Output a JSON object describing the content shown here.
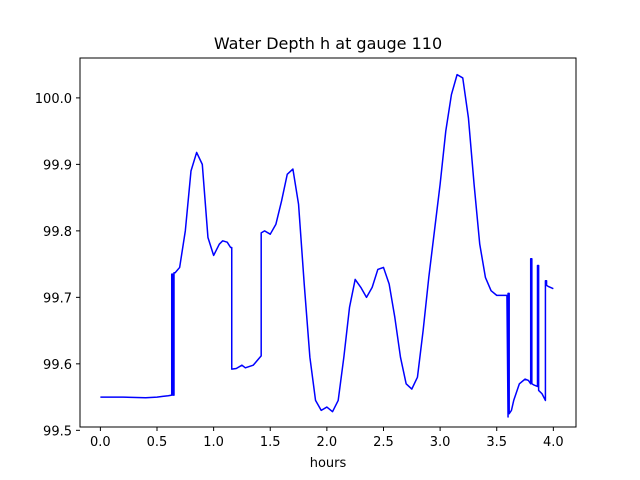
{
  "chart_data": {
    "type": "line",
    "title": "Water Depth h at gauge 110",
    "xlabel": "hours",
    "ylabel": "",
    "xlim": [
      -0.18,
      4.2
    ],
    "ylim": [
      99.505,
      100.06
    ],
    "xticks": [
      "0.0",
      "0.5",
      "1.0",
      "1.5",
      "2.0",
      "2.5",
      "3.0",
      "3.5",
      "4.0"
    ],
    "yticks": [
      "99.5",
      "99.6",
      "99.7",
      "99.8",
      "99.9",
      "100.0"
    ],
    "grid": false,
    "line_color": "#0000ff",
    "series": [
      {
        "name": "",
        "x": [
          0.0,
          0.2,
          0.4,
          0.5,
          0.55,
          0.6,
          0.63,
          0.63,
          0.64,
          0.64,
          0.65,
          0.65,
          0.66,
          0.66,
          0.7,
          0.75,
          0.8,
          0.85,
          0.9,
          0.95,
          1.0,
          1.05,
          1.08,
          1.12,
          1.15,
          1.16,
          1.16,
          1.2,
          1.25,
          1.28,
          1.35,
          1.4,
          1.42,
          1.42,
          1.45,
          1.5,
          1.55,
          1.6,
          1.65,
          1.7,
          1.75,
          1.8,
          1.85,
          1.9,
          1.95,
          2.0,
          2.05,
          2.1,
          2.15,
          2.2,
          2.25,
          2.3,
          2.35,
          2.4,
          2.45,
          2.5,
          2.55,
          2.6,
          2.65,
          2.7,
          2.75,
          2.8,
          2.85,
          2.9,
          2.95,
          3.0,
          3.05,
          3.1,
          3.15,
          3.2,
          3.25,
          3.3,
          3.35,
          3.4,
          3.45,
          3.5,
          3.55,
          3.58,
          3.59,
          3.6,
          3.6,
          3.61,
          3.61,
          3.63,
          3.65,
          3.7,
          3.75,
          3.78,
          3.8,
          3.8,
          3.81,
          3.81,
          3.83,
          3.86,
          3.86,
          3.87,
          3.87,
          3.9,
          3.93,
          3.93,
          3.94,
          3.94,
          3.96,
          4.0
        ],
        "y": [
          99.55,
          99.55,
          99.549,
          99.55,
          99.551,
          99.552,
          99.553,
          99.735,
          99.735,
          99.553,
          99.553,
          99.737,
          99.737,
          99.737,
          99.745,
          99.8,
          99.89,
          99.918,
          99.9,
          99.79,
          99.763,
          99.78,
          99.785,
          99.783,
          99.775,
          99.775,
          99.592,
          99.593,
          99.598,
          99.594,
          99.598,
          99.608,
          99.612,
          99.797,
          99.8,
          99.795,
          99.81,
          99.845,
          99.885,
          99.893,
          99.84,
          99.72,
          99.61,
          99.545,
          99.53,
          99.535,
          99.528,
          99.545,
          99.61,
          99.685,
          99.727,
          99.715,
          99.7,
          99.715,
          99.742,
          99.745,
          99.72,
          99.67,
          99.61,
          99.57,
          99.562,
          99.58,
          99.65,
          99.73,
          99.8,
          99.87,
          99.95,
          100.005,
          100.035,
          100.03,
          99.97,
          99.87,
          99.78,
          99.73,
          99.71,
          99.703,
          99.703,
          99.703,
          99.703,
          99.52,
          99.706,
          99.706,
          99.525,
          99.53,
          99.545,
          99.57,
          99.577,
          99.575,
          99.57,
          99.758,
          99.758,
          99.57,
          99.568,
          99.566,
          99.748,
          99.748,
          99.56,
          99.555,
          99.545,
          99.725,
          99.725,
          99.718,
          99.716,
          99.713
        ]
      }
    ]
  }
}
